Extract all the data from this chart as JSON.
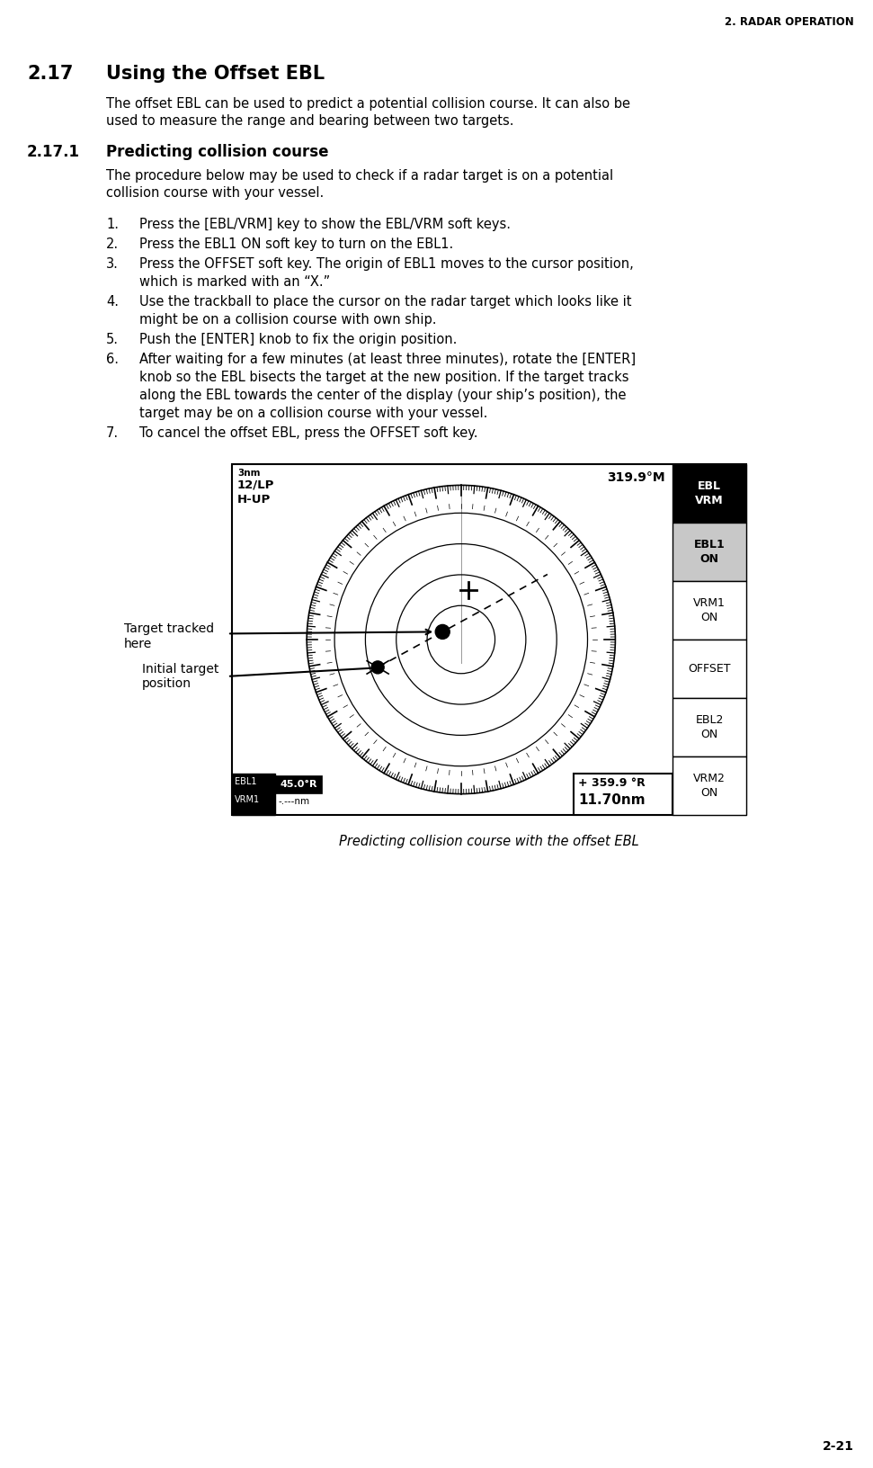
{
  "page_header": "2. RADAR OPERATION",
  "section_num": "2.17",
  "section_title": "Using the Offset EBL",
  "section_intro": "The offset EBL can be used to predict a potential collision course. It can also be\nused to measure the range and bearing between two targets.",
  "subsection_num": "2.17.1",
  "subsection_title": "Predicting collision course",
  "subsection_intro": "The procedure below may be used to check if a radar target is on a potential\ncollision course with your vessel.",
  "steps": [
    "Press the [EBL/VRM] key to show the EBL/VRM soft keys.",
    "Press the EBL1 ON soft key to turn on the EBL1.",
    "Press the OFFSET soft key. The origin of EBL1 moves to the cursor position,\nwhich is marked with an “X.”",
    "Use the trackball to place the cursor on the radar target which looks like it\nmight be on a collision course with own ship.",
    "Push the [ENTER] knob to fix the origin position.",
    "After waiting for a few minutes (at least three minutes), rotate the [ENTER]\nknob so the EBL bisects the target at the new position. If the target tracks\nalong the EBL towards the center of the display (your ship’s position), the\ntarget may be on a collision course with your vessel.",
    "To cancel the offset EBL, press the OFFSET soft key."
  ],
  "figure_caption": "Predicting collision course with the offset EBL",
  "page_num": "2-21",
  "radar": {
    "top_left_range": "3nm",
    "top_left_mode": "12/LP",
    "top_left_orientation": "H-UP",
    "top_right_bearing": "319.9°M",
    "ebl1_label": "EBL1",
    "ebl1_val": "45.0°R",
    "vrm1_label": "VRM1",
    "vrm1_val": "-.---nm",
    "br_plus": "+",
    "br_val1": "359.9 °R",
    "br_val2": "11.70nm",
    "label_tracked": "Target tracked\nhere",
    "label_initial": "Initial target\nposition",
    "softkeys": [
      {
        "text": "EBL\nVRM",
        "bg": "#000000",
        "fg": "#ffffff",
        "bold": true
      },
      {
        "text": "EBL1\nON",
        "bg": "#c8c8c8",
        "fg": "#000000",
        "bold": true
      },
      {
        "text": "VRM1\nON",
        "bg": "#ffffff",
        "fg": "#000000",
        "bold": false
      },
      {
        "text": "OFFSET",
        "bg": "#ffffff",
        "fg": "#000000",
        "bold": false
      },
      {
        "text": "EBL2\nON",
        "bg": "#ffffff",
        "fg": "#000000",
        "bold": false
      },
      {
        "text": "VRM2\nON",
        "bg": "#ffffff",
        "fg": "#000000",
        "bold": false
      }
    ]
  }
}
